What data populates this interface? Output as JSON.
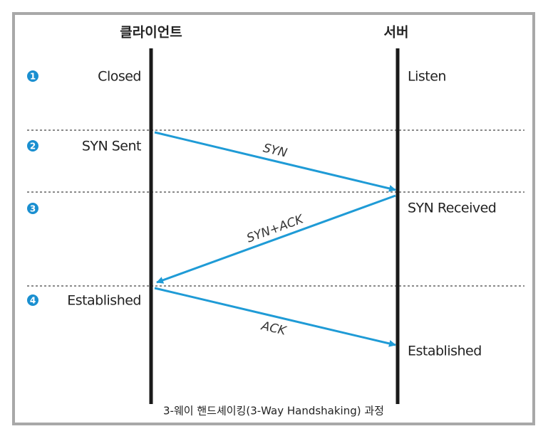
{
  "header": {
    "client": "클라이언트",
    "server": "서버"
  },
  "steps": [
    1,
    2,
    3,
    4
  ],
  "client_states": [
    "Closed",
    "SYN Sent",
    "Established"
  ],
  "server_states": [
    "Listen",
    "SYN Received",
    "Established"
  ],
  "messages": [
    "SYN",
    "SYN+ACK",
    "ACK"
  ],
  "caption": "3-웨이 핸드셰이킹(3-Way Handshaking) 과정"
}
